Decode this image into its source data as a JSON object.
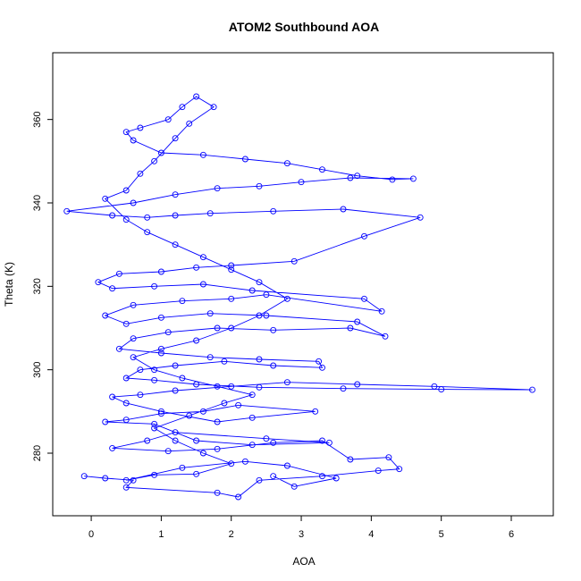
{
  "chart_data": {
    "type": "scatter",
    "title": "ATOM2 Southbound AOA",
    "xlabel": "AOA",
    "ylabel": "Theta (K)",
    "xlim": [
      -0.55,
      6.6
    ],
    "ylim": [
      265,
      376
    ],
    "xticks": [
      0,
      1,
      2,
      3,
      4,
      5,
      6
    ],
    "yticks": [
      280,
      300,
      320,
      340,
      360
    ],
    "grid": false,
    "legend": "none",
    "line_color": "#0000ff",
    "marker": "open-circle",
    "series": [
      {
        "values": [
          [
            -0.1,
            274.5
          ],
          [
            0.2,
            274.0
          ],
          [
            0.6,
            273.5
          ],
          [
            0.5,
            271.8
          ],
          [
            1.8,
            270.5
          ],
          [
            2.1,
            269.5
          ],
          [
            2.4,
            273.5
          ],
          [
            3.3,
            274.5
          ],
          [
            4.1,
            275.8
          ],
          [
            4.4,
            276.2
          ],
          [
            4.25,
            279.0
          ],
          [
            3.7,
            278.5
          ],
          [
            3.3,
            283.0
          ],
          [
            2.6,
            282.5
          ],
          [
            1.8,
            281.0
          ],
          [
            1.1,
            280.5
          ],
          [
            0.3,
            281.2
          ],
          [
            0.8,
            283.0
          ],
          [
            1.2,
            285.0
          ],
          [
            2.5,
            283.5
          ],
          [
            3.4,
            282.5
          ],
          [
            2.3,
            282.0
          ],
          [
            1.5,
            283.0
          ],
          [
            0.9,
            287.0
          ],
          [
            0.2,
            287.5
          ],
          [
            0.5,
            288.0
          ],
          [
            1.0,
            289.5
          ],
          [
            1.6,
            290.0
          ],
          [
            2.1,
            291.5
          ],
          [
            3.2,
            290.0
          ],
          [
            2.3,
            288.5
          ],
          [
            1.8,
            287.5
          ],
          [
            1.0,
            290.0
          ],
          [
            0.5,
            292.0
          ],
          [
            0.3,
            293.5
          ],
          [
            0.7,
            294.0
          ],
          [
            1.2,
            295.0
          ],
          [
            2.0,
            296.0
          ],
          [
            2.8,
            297.0
          ],
          [
            3.8,
            296.5
          ],
          [
            4.9,
            296.0
          ],
          [
            6.3,
            295.2
          ],
          [
            5.0,
            295.3
          ],
          [
            3.6,
            295.5
          ],
          [
            2.4,
            295.8
          ],
          [
            1.5,
            296.5
          ],
          [
            0.9,
            297.5
          ],
          [
            0.5,
            298.0
          ],
          [
            0.7,
            300.0
          ],
          [
            1.2,
            301.0
          ],
          [
            1.9,
            302.0
          ],
          [
            2.6,
            301.0
          ],
          [
            3.3,
            300.5
          ],
          [
            3.25,
            302.0
          ],
          [
            2.4,
            302.5
          ],
          [
            1.7,
            303.0
          ],
          [
            1.0,
            304.0
          ],
          [
            0.4,
            305.0
          ],
          [
            0.6,
            307.5
          ],
          [
            1.1,
            309.0
          ],
          [
            1.8,
            310.0
          ],
          [
            2.6,
            309.5
          ],
          [
            3.7,
            310.0
          ],
          [
            4.2,
            308.0
          ],
          [
            3.8,
            311.5
          ],
          [
            2.5,
            313.0
          ],
          [
            1.7,
            313.5
          ],
          [
            1.0,
            312.5
          ],
          [
            0.5,
            311.0
          ],
          [
            0.2,
            313.0
          ],
          [
            0.6,
            315.5
          ],
          [
            1.3,
            316.5
          ],
          [
            2.0,
            317.0
          ],
          [
            2.5,
            318.0
          ],
          [
            4.15,
            314.0
          ],
          [
            3.9,
            317.0
          ],
          [
            2.3,
            319.0
          ],
          [
            1.6,
            320.5
          ],
          [
            0.9,
            320.0
          ],
          [
            0.3,
            319.5
          ],
          [
            0.1,
            321.0
          ],
          [
            0.4,
            323.0
          ],
          [
            1.0,
            323.5
          ],
          [
            1.5,
            324.5
          ],
          [
            2.0,
            325.0
          ],
          [
            2.9,
            326.0
          ],
          [
            3.9,
            332.0
          ],
          [
            4.7,
            336.5
          ],
          [
            3.6,
            338.5
          ],
          [
            2.6,
            338.0
          ],
          [
            1.7,
            337.5
          ],
          [
            1.2,
            337.0
          ],
          [
            0.8,
            336.5
          ],
          [
            0.3,
            337.0
          ],
          [
            -0.35,
            338.0
          ],
          [
            0.6,
            340.0
          ],
          [
            1.2,
            342.0
          ],
          [
            1.8,
            343.5
          ],
          [
            2.4,
            344.0
          ],
          [
            3.0,
            345.0
          ],
          [
            3.7,
            346.0
          ],
          [
            4.6,
            345.8
          ],
          [
            4.3,
            345.6
          ],
          [
            3.8,
            346.5
          ],
          [
            3.3,
            348.0
          ],
          [
            2.8,
            349.5
          ],
          [
            2.2,
            350.5
          ],
          [
            1.6,
            351.5
          ],
          [
            1.0,
            352.0
          ],
          [
            0.6,
            355.0
          ],
          [
            0.5,
            357.0
          ],
          [
            0.7,
            358.0
          ],
          [
            1.1,
            360.0
          ],
          [
            1.3,
            363.0
          ],
          [
            1.5,
            365.5
          ],
          [
            1.75,
            363.0
          ],
          [
            1.4,
            359.0
          ],
          [
            1.2,
            355.5
          ],
          [
            0.9,
            350.0
          ],
          [
            0.7,
            347.0
          ],
          [
            0.5,
            343.0
          ],
          [
            0.2,
            341.0
          ],
          [
            0.5,
            336.0
          ],
          [
            0.8,
            333.0
          ],
          [
            1.2,
            330.0
          ],
          [
            1.6,
            327.0
          ],
          [
            2.0,
            324.0
          ],
          [
            2.4,
            321.0
          ],
          [
            2.8,
            317.0
          ],
          [
            2.4,
            313.0
          ],
          [
            2.0,
            310.0
          ],
          [
            1.5,
            307.0
          ],
          [
            1.0,
            305.0
          ],
          [
            0.6,
            303.0
          ],
          [
            0.9,
            300.0
          ],
          [
            1.3,
            298.0
          ],
          [
            1.8,
            296.0
          ],
          [
            2.3,
            294.0
          ],
          [
            1.9,
            292.0
          ],
          [
            1.4,
            289.0
          ],
          [
            0.9,
            286.0
          ],
          [
            1.2,
            283.0
          ],
          [
            1.6,
            280.0
          ],
          [
            2.0,
            277.5
          ],
          [
            1.5,
            275.0
          ],
          [
            0.9,
            274.8
          ],
          [
            0.5,
            273.5
          ],
          [
            1.3,
            276.5
          ],
          [
            2.2,
            278.0
          ],
          [
            2.8,
            277.0
          ],
          [
            3.5,
            274.0
          ],
          [
            2.9,
            272.0
          ],
          [
            2.6,
            274.5
          ]
        ]
      }
    ]
  }
}
